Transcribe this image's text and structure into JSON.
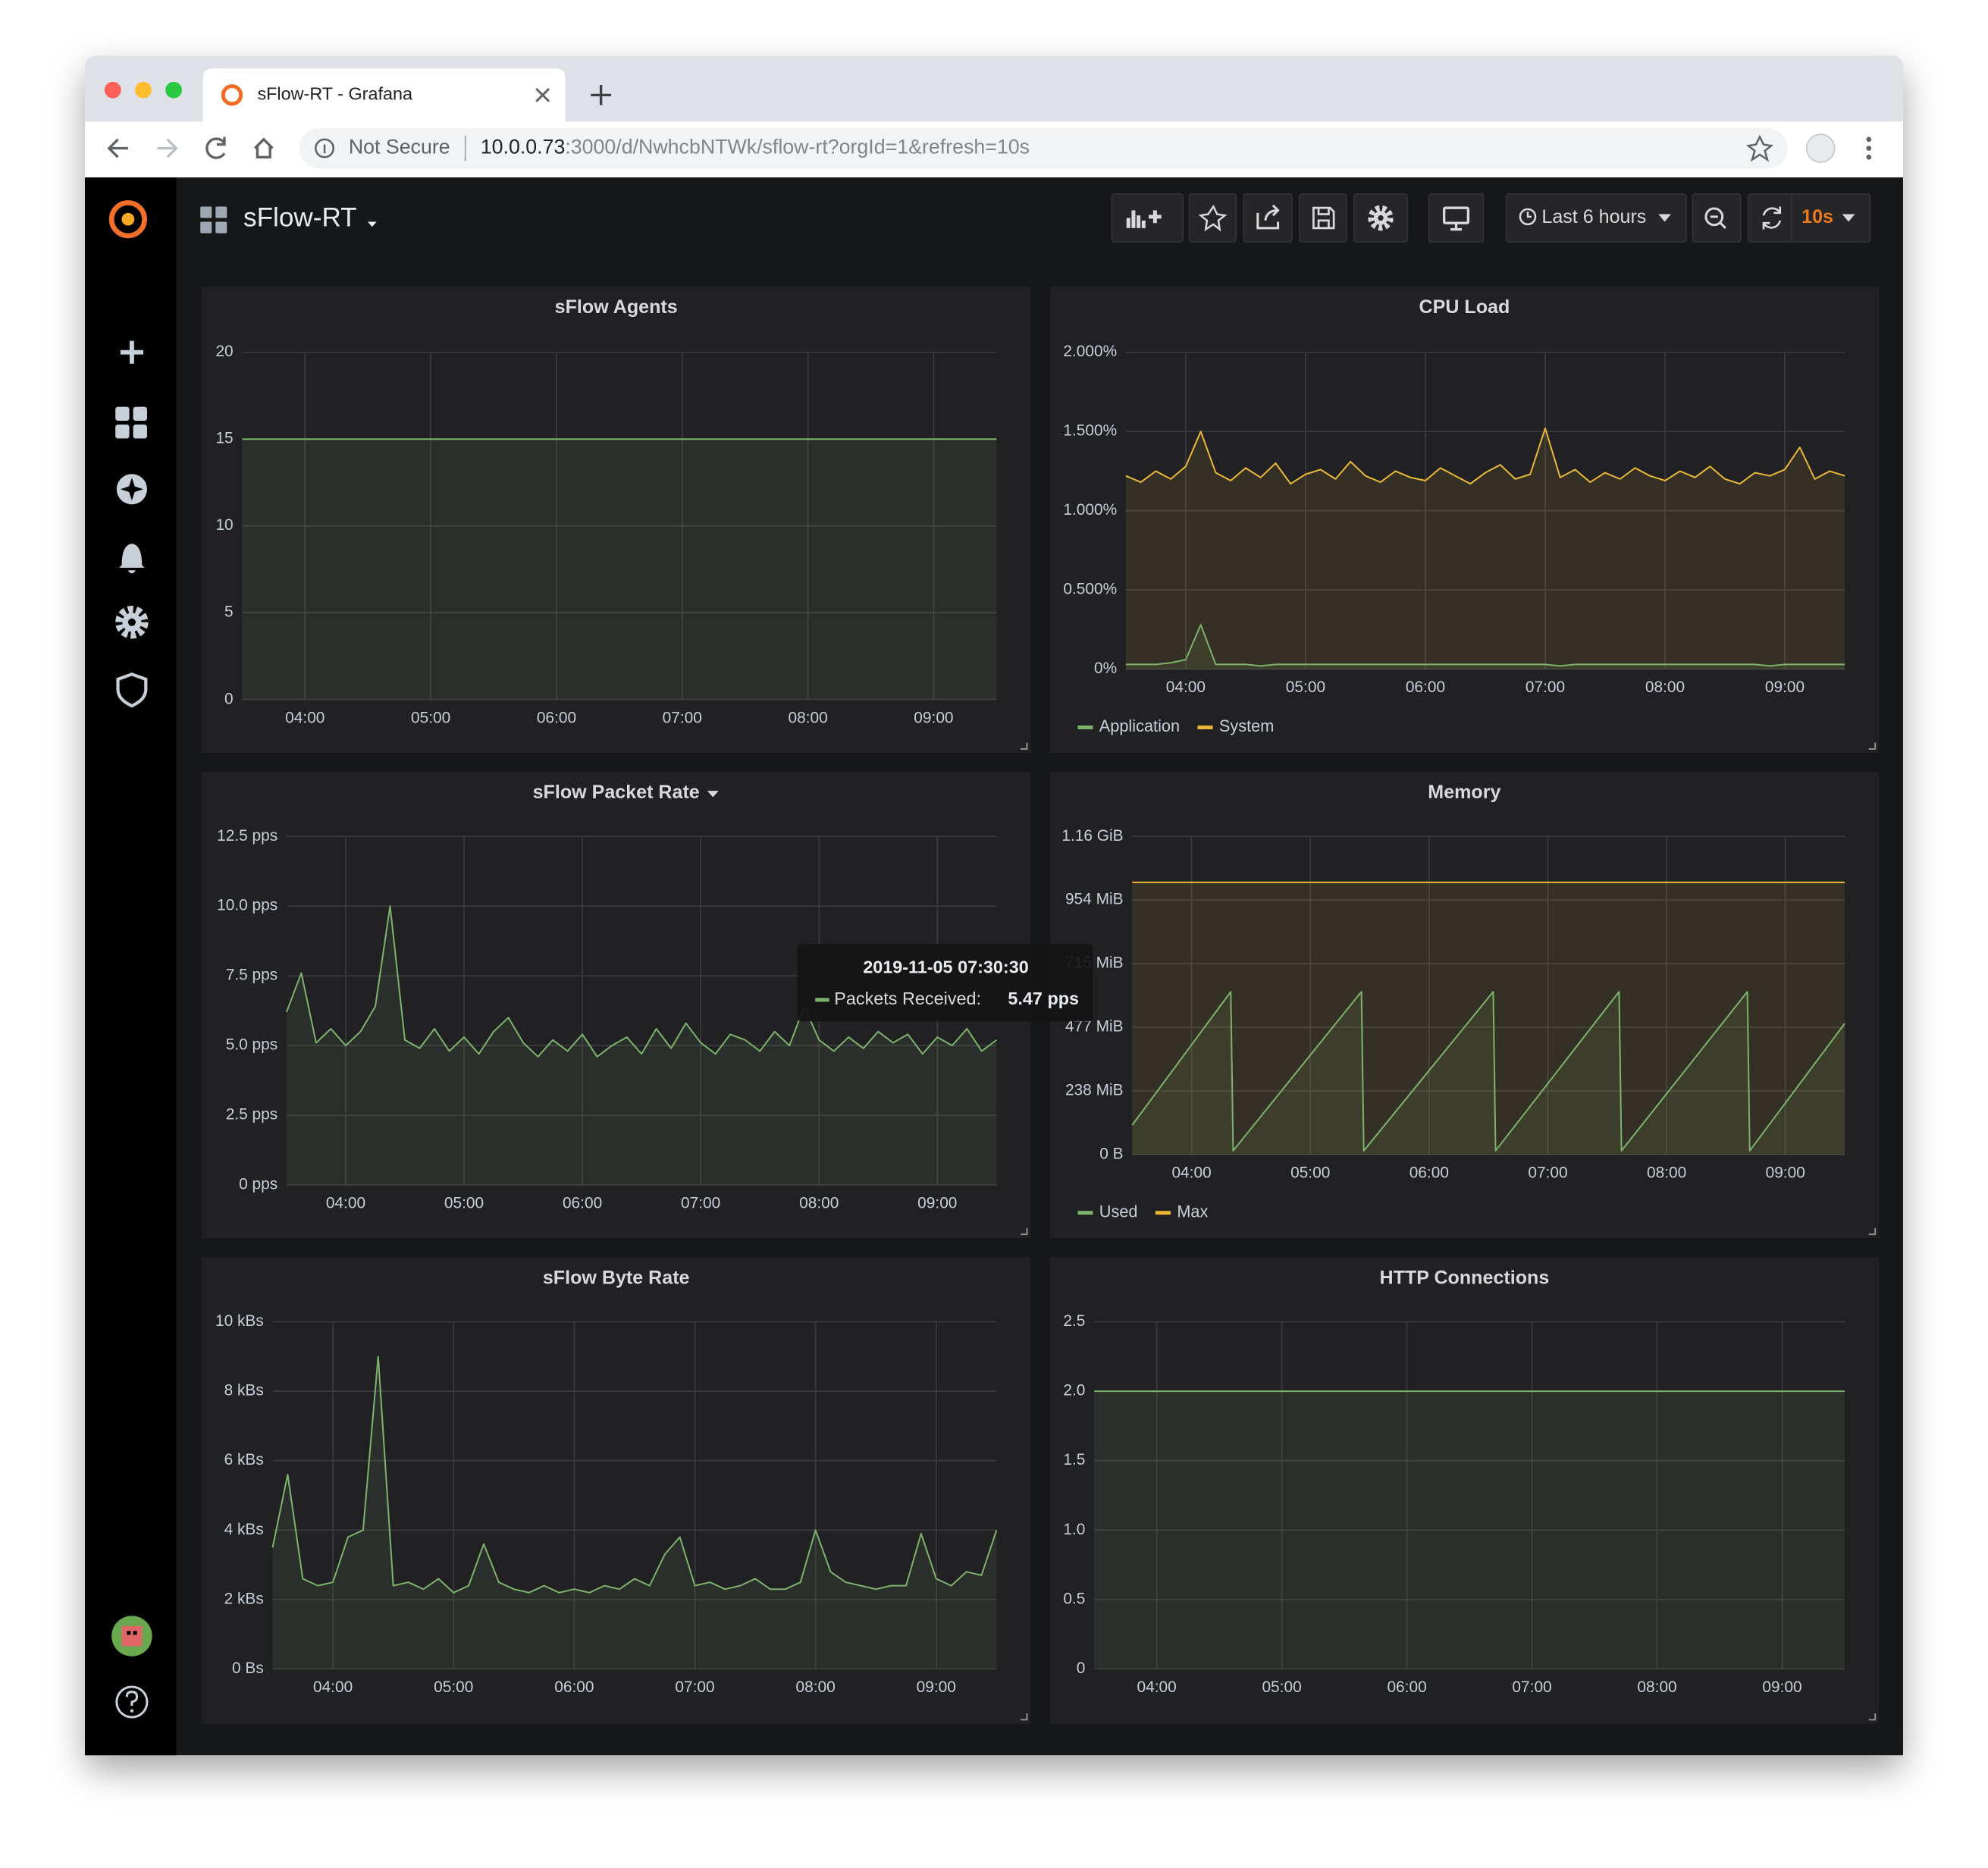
{
  "browser": {
    "tab_title": "sFlow-RT - Grafana",
    "security": "Not Secure",
    "url_host": "10.0.0.73",
    "url_path": ":3000/d/NwhcbNTWk/sflow-rt?orgId=1&refresh=10s"
  },
  "dashboard": {
    "title": "sFlow-RT",
    "time_range": "Last 6 hours",
    "refresh": "10s"
  },
  "chart_data": [
    {
      "type": "line",
      "title": "sFlow Agents",
      "grid": true,
      "area": true,
      "xlim": [
        3.5,
        9.5
      ],
      "xticks": [
        {
          "value": 4,
          "label": "04:00"
        },
        {
          "value": 5,
          "label": "05:00"
        },
        {
          "value": 6,
          "label": "06:00"
        },
        {
          "value": 7,
          "label": "07:00"
        },
        {
          "value": 8,
          "label": "08:00"
        },
        {
          "value": 9,
          "label": "09:00"
        }
      ],
      "ylim": [
        0,
        20
      ],
      "yticks": [
        0,
        5,
        10,
        15,
        20
      ],
      "x": [
        3.5,
        9.5
      ],
      "series": [
        {
          "color": "#7eb26d",
          "values": [
            15,
            15
          ]
        }
      ]
    },
    {
      "type": "line",
      "title": "CPU Load",
      "grid": true,
      "area": true,
      "legend": "bottom-left",
      "xlim": [
        3.5,
        9.5
      ],
      "xticks": [
        {
          "value": 4,
          "label": "04:00"
        },
        {
          "value": 5,
          "label": "05:00"
        },
        {
          "value": 6,
          "label": "06:00"
        },
        {
          "value": 7,
          "label": "07:00"
        },
        {
          "value": 8,
          "label": "08:00"
        },
        {
          "value": 9,
          "label": "09:00"
        }
      ],
      "ylim": [
        0,
        2
      ],
      "yticks": [
        {
          "value": 0,
          "label": "0%"
        },
        {
          "value": 0.5,
          "label": "0.500%"
        },
        {
          "value": 1,
          "label": "1.000%"
        },
        {
          "value": 1.5,
          "label": "1.500%"
        },
        {
          "value": 2,
          "label": "2.000%"
        }
      ],
      "x": [
        3.5,
        3.625,
        3.75,
        3.875,
        4,
        4.125,
        4.25,
        4.375,
        4.5,
        4.625,
        4.75,
        4.875,
        5,
        5.125,
        5.25,
        5.375,
        5.5,
        5.625,
        5.75,
        5.875,
        6,
        6.125,
        6.25,
        6.375,
        6.5,
        6.625,
        6.75,
        6.875,
        7,
        7.125,
        7.25,
        7.375,
        7.5,
        7.625,
        7.75,
        7.875,
        8,
        8.125,
        8.25,
        8.375,
        8.5,
        8.625,
        8.75,
        8.875,
        9,
        9.125,
        9.25,
        9.375,
        9.5
      ],
      "series": [
        {
          "name": "Application",
          "color": "#7eb26d",
          "values": [
            0.03,
            0.03,
            0.03,
            0.04,
            0.06,
            0.28,
            0.03,
            0.03,
            0.03,
            0.02,
            0.03,
            0.03,
            0.03,
            0.03,
            0.03,
            0.03,
            0.03,
            0.03,
            0.03,
            0.03,
            0.03,
            0.03,
            0.03,
            0.03,
            0.03,
            0.03,
            0.03,
            0.03,
            0.03,
            0.02,
            0.03,
            0.03,
            0.03,
            0.03,
            0.03,
            0.03,
            0.03,
            0.03,
            0.03,
            0.03,
            0.03,
            0.03,
            0.03,
            0.02,
            0.03,
            0.03,
            0.03,
            0.03,
            0.03
          ]
        },
        {
          "name": "System",
          "color": "#eab839",
          "values": [
            1.22,
            1.18,
            1.25,
            1.2,
            1.28,
            1.5,
            1.24,
            1.19,
            1.27,
            1.21,
            1.3,
            1.17,
            1.23,
            1.26,
            1.2,
            1.31,
            1.22,
            1.18,
            1.25,
            1.21,
            1.19,
            1.27,
            1.22,
            1.17,
            1.24,
            1.29,
            1.2,
            1.23,
            1.52,
            1.21,
            1.26,
            1.18,
            1.24,
            1.2,
            1.27,
            1.22,
            1.19,
            1.25,
            1.21,
            1.28,
            1.2,
            1.17,
            1.24,
            1.22,
            1.26,
            1.4,
            1.2,
            1.25,
            1.22
          ]
        }
      ]
    },
    {
      "type": "line",
      "title": "sFlow Packet Rate",
      "grid": true,
      "area": true,
      "xlim": [
        3.5,
        9.5
      ],
      "xticks": [
        {
          "value": 4,
          "label": "04:00"
        },
        {
          "value": 5,
          "label": "05:00"
        },
        {
          "value": 6,
          "label": "06:00"
        },
        {
          "value": 7,
          "label": "07:00"
        },
        {
          "value": 8,
          "label": "08:00"
        },
        {
          "value": 9,
          "label": "09:00"
        }
      ],
      "ylim": [
        0,
        12.5
      ],
      "yticks": [
        {
          "value": 0,
          "label": "0 pps"
        },
        {
          "value": 2.5,
          "label": "2.5 pps"
        },
        {
          "value": 5,
          "label": "5.0 pps"
        },
        {
          "value": 7.5,
          "label": "7.5 pps"
        },
        {
          "value": 10,
          "label": "10.0 pps"
        },
        {
          "value": 12.5,
          "label": "12.5 pps"
        }
      ],
      "x": [
        3.5,
        3.625,
        3.75,
        3.875,
        4,
        4.125,
        4.25,
        4.375,
        4.5,
        4.625,
        4.75,
        4.875,
        5,
        5.125,
        5.25,
        5.375,
        5.5,
        5.625,
        5.75,
        5.875,
        6,
        6.125,
        6.25,
        6.375,
        6.5,
        6.625,
        6.75,
        6.875,
        7,
        7.125,
        7.25,
        7.375,
        7.5,
        7.625,
        7.75,
        7.875,
        8,
        8.125,
        8.25,
        8.375,
        8.5,
        8.625,
        8.75,
        8.875,
        9,
        9.125,
        9.25,
        9.375,
        9.5
      ],
      "series": [
        {
          "color": "#7eb26d",
          "values": [
            6.2,
            7.6,
            5.1,
            5.6,
            5.0,
            5.5,
            6.4,
            10.0,
            5.2,
            4.9,
            5.6,
            4.8,
            5.3,
            4.7,
            5.5,
            6.0,
            5.1,
            4.6,
            5.2,
            4.8,
            5.4,
            4.6,
            5.0,
            5.3,
            4.7,
            5.6,
            4.9,
            5.8,
            5.1,
            4.7,
            5.4,
            5.2,
            4.8,
            5.5,
            5.0,
            6.4,
            5.2,
            4.8,
            5.3,
            4.9,
            5.5,
            5.1,
            5.4,
            4.7,
            5.3,
            5.0,
            5.6,
            4.8,
            5.2
          ]
        }
      ],
      "tooltip": {
        "time": "2019-11-05 07:30:30",
        "series_label": "Packets Received:",
        "value": "5.47 pps"
      }
    },
    {
      "type": "line",
      "title": "Memory",
      "grid": true,
      "area": true,
      "legend": "bottom-left",
      "xlim": [
        3.5,
        9.5
      ],
      "xticks": [
        {
          "value": 4,
          "label": "04:00"
        },
        {
          "value": 5,
          "label": "05:00"
        },
        {
          "value": 6,
          "label": "06:00"
        },
        {
          "value": 7,
          "label": "07:00"
        },
        {
          "value": 8,
          "label": "08:00"
        },
        {
          "value": 9,
          "label": "09:00"
        }
      ],
      "ylim": [
        0,
        1192
      ],
      "yticks": [
        {
          "value": 0,
          "label": "0 B"
        },
        {
          "value": 238.4,
          "label": "238 MiB"
        },
        {
          "value": 476.8,
          "label": "477 MiB"
        },
        {
          "value": 715.2,
          "label": "715 MiB"
        },
        {
          "value": 953.6,
          "label": "954 MiB"
        },
        {
          "value": 1192,
          "label": "1.16 GiB"
        }
      ],
      "series": [
        {
          "name": "Used",
          "color": "#7eb26d",
          "x": [
            3.5,
            4.33,
            4.35,
            5.43,
            5.45,
            6.54,
            6.56,
            7.6,
            7.62,
            8.68,
            8.7,
            9.5
          ],
          "values": [
            110,
            610,
            14,
            610,
            14,
            610,
            14,
            610,
            14,
            610,
            14,
            491
          ]
        },
        {
          "name": "Max",
          "color": "#eab839",
          "x": [
            3.5,
            9.5
          ],
          "values": [
            1020,
            1020
          ]
        }
      ]
    },
    {
      "type": "line",
      "title": "sFlow Byte Rate",
      "grid": true,
      "area": true,
      "xlim": [
        3.5,
        9.5
      ],
      "xticks": [
        {
          "value": 4,
          "label": "04:00"
        },
        {
          "value": 5,
          "label": "05:00"
        },
        {
          "value": 6,
          "label": "06:00"
        },
        {
          "value": 7,
          "label": "07:00"
        },
        {
          "value": 8,
          "label": "08:00"
        },
        {
          "value": 9,
          "label": "09:00"
        }
      ],
      "ylim": [
        0,
        10
      ],
      "yticks": [
        {
          "value": 0,
          "label": "0 Bs"
        },
        {
          "value": 2,
          "label": "2 kBs"
        },
        {
          "value": 4,
          "label": "4 kBs"
        },
        {
          "value": 6,
          "label": "6 kBs"
        },
        {
          "value": 8,
          "label": "8 kBs"
        },
        {
          "value": 10,
          "label": "10 kBs"
        }
      ],
      "x": [
        3.5,
        3.625,
        3.75,
        3.875,
        4,
        4.125,
        4.25,
        4.375,
        4.5,
        4.625,
        4.75,
        4.875,
        5,
        5.125,
        5.25,
        5.375,
        5.5,
        5.625,
        5.75,
        5.875,
        6,
        6.125,
        6.25,
        6.375,
        6.5,
        6.625,
        6.75,
        6.875,
        7,
        7.125,
        7.25,
        7.375,
        7.5,
        7.625,
        7.75,
        7.875,
        8,
        8.125,
        8.25,
        8.375,
        8.5,
        8.625,
        8.75,
        8.875,
        9,
        9.125,
        9.25,
        9.375,
        9.5
      ],
      "series": [
        {
          "color": "#7eb26d",
          "values": [
            3.5,
            5.6,
            2.6,
            2.4,
            2.5,
            3.8,
            4.0,
            9.0,
            2.4,
            2.5,
            2.3,
            2.6,
            2.2,
            2.4,
            3.6,
            2.5,
            2.3,
            2.2,
            2.4,
            2.2,
            2.3,
            2.2,
            2.4,
            2.3,
            2.6,
            2.4,
            3.3,
            3.8,
            2.4,
            2.5,
            2.3,
            2.4,
            2.6,
            2.3,
            2.3,
            2.5,
            4.0,
            2.8,
            2.5,
            2.4,
            2.3,
            2.4,
            2.4,
            3.9,
            2.6,
            2.4,
            2.8,
            2.7,
            4.0
          ]
        }
      ]
    },
    {
      "type": "line",
      "title": "HTTP Connections",
      "grid": true,
      "area": true,
      "xlim": [
        3.5,
        9.5
      ],
      "xticks": [
        {
          "value": 4,
          "label": "04:00"
        },
        {
          "value": 5,
          "label": "05:00"
        },
        {
          "value": 6,
          "label": "06:00"
        },
        {
          "value": 7,
          "label": "07:00"
        },
        {
          "value": 8,
          "label": "08:00"
        },
        {
          "value": 9,
          "label": "09:00"
        }
      ],
      "ylim": [
        0,
        2.5
      ],
      "yticks": [
        0,
        0.5,
        {
          "value": 1,
          "label": "1.0"
        },
        1.5,
        {
          "value": 2,
          "label": "2.0"
        },
        2.5
      ],
      "x": [
        3.5,
        9.5
      ],
      "series": [
        {
          "color": "#7eb26d",
          "values": [
            2,
            2
          ]
        }
      ]
    }
  ]
}
